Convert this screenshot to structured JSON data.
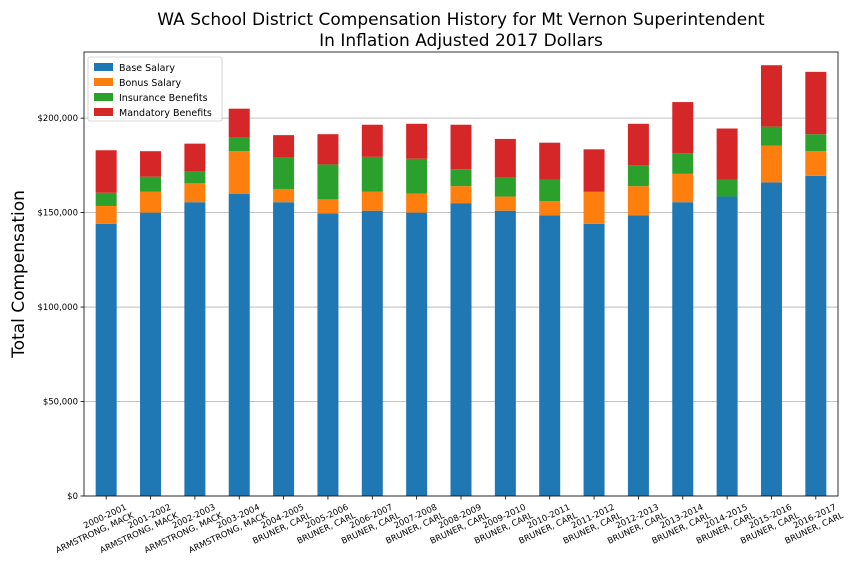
{
  "chart_data": {
    "type": "bar",
    "stacked": true,
    "title": [
      "WA School District Compensation History for Mt Vernon Superintendent",
      "In Inflation Adjusted 2017 Dollars"
    ],
    "xlabel": "",
    "ylabel": "Total Compensation",
    "ylim": [
      0,
      235000
    ],
    "yticks": [
      0,
      50000,
      100000,
      150000,
      200000
    ],
    "ytick_labels": [
      "$0",
      "$50,000",
      "$100,000",
      "$150,000",
      "$200,000"
    ],
    "grid": "horizontal",
    "legend_position": "top-left",
    "categories": [
      [
        "2000-2001",
        "ARMSTRONG, MACK"
      ],
      [
        "2001-2002",
        "ARMSTRONG, MACK"
      ],
      [
        "2002-2003",
        "ARMSTRONG, MACK"
      ],
      [
        "2003-2004",
        "ARMSTRONG, MACK"
      ],
      [
        "2004-2005",
        "BRUNER, CARL"
      ],
      [
        "2005-2006",
        "BRUNER, CARL"
      ],
      [
        "2006-2007",
        "BRUNER, CARL"
      ],
      [
        "2007-2008",
        "BRUNER, CARL"
      ],
      [
        "2008-2009",
        "BRUNER, CARL"
      ],
      [
        "2009-2010",
        "BRUNER, CARL"
      ],
      [
        "2010-2011",
        "BRUNER, CARL"
      ],
      [
        "2011-2012",
        "BRUNER, CARL"
      ],
      [
        "2012-2013",
        "BRUNER, CARL"
      ],
      [
        "2013-2014",
        "BRUNER, CARL"
      ],
      [
        "2014-2015",
        "BRUNER, CARL"
      ],
      [
        "2015-2016",
        "BRUNER, CARL"
      ],
      [
        "2016-2017",
        "BRUNER, CARL"
      ]
    ],
    "series": [
      {
        "name": "Base Salary",
        "color": "#1f77b4",
        "values": [
          144000,
          150000,
          155500,
          160000,
          155500,
          149500,
          151000,
          150000,
          155000,
          151000,
          148500,
          144000,
          148500,
          155500,
          158500,
          166000,
          169500
        ]
      },
      {
        "name": "Bonus Salary",
        "color": "#ff7f0e",
        "values": [
          9500,
          11000,
          10000,
          22500,
          7000,
          7500,
          10000,
          10000,
          9000,
          7500,
          7500,
          17000,
          15500,
          15000,
          0,
          19500,
          13000
        ]
      },
      {
        "name": "Insurance Benefits",
        "color": "#2ca02c",
        "values": [
          7000,
          8000,
          6500,
          7500,
          16500,
          18500,
          18500,
          18500,
          9000,
          10000,
          11500,
          0,
          11000,
          11000,
          9000,
          10000,
          9000
        ]
      },
      {
        "name": "Mandatory Benefits",
        "color": "#d62728",
        "values": [
          22500,
          13500,
          14500,
          15000,
          12000,
          16000,
          17000,
          18500,
          23500,
          20500,
          19500,
          22500,
          22000,
          27000,
          27000,
          32500,
          33000
        ]
      }
    ]
  }
}
